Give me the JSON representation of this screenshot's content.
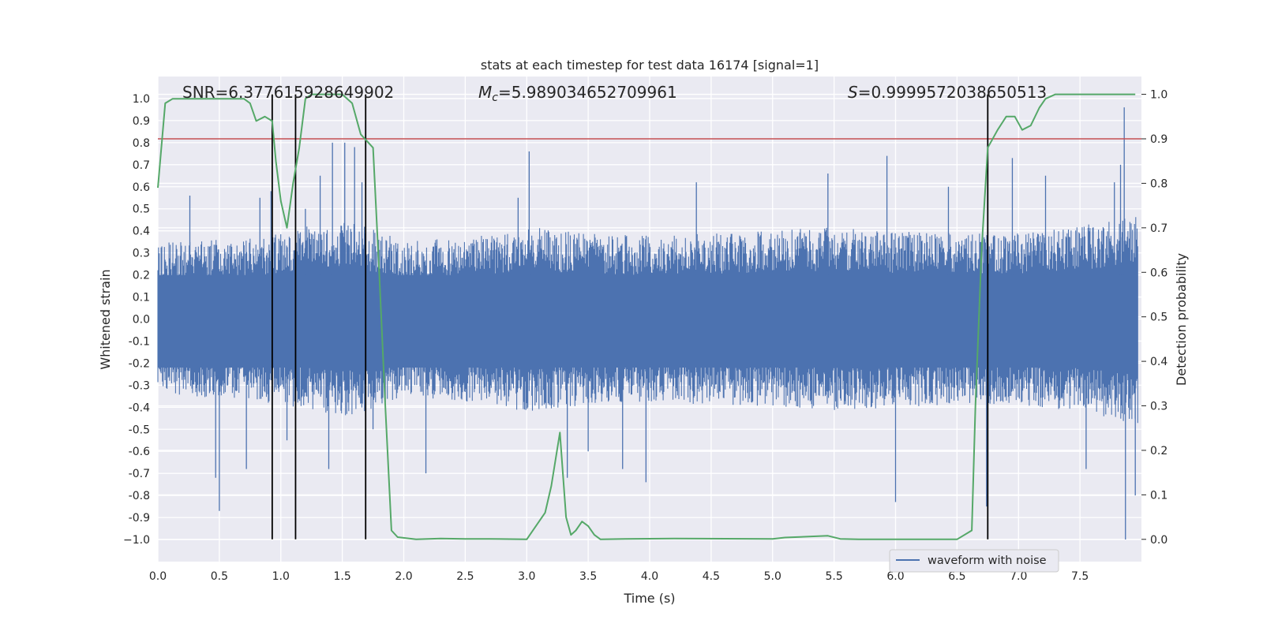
{
  "chart_data": {
    "type": "line",
    "title": "stats at each timestep for test data 16174 [signal=1]",
    "xlabel": "Time (s)",
    "ylabel": "Whitened strain",
    "ylabel_right": "Detection probability",
    "xlim": [
      0.0,
      8.0
    ],
    "ylim": [
      -1.1,
      1.1
    ],
    "ylim_right": [
      -0.05,
      1.04
    ],
    "x_ticks": [
      "0.0",
      "0.5",
      "1.0",
      "1.5",
      "2.0",
      "2.5",
      "3.0",
      "3.5",
      "4.0",
      "4.5",
      "5.0",
      "5.5",
      "6.0",
      "6.5",
      "7.0",
      "7.5"
    ],
    "y_ticks": [
      "1.0",
      "0.9",
      "0.8",
      "0.7",
      "0.6",
      "0.5",
      "0.4",
      "0.3",
      "0.2",
      "0.1",
      "0.0",
      "-0.1",
      "-0.2",
      "-0.3",
      "-0.4",
      "-0.5",
      "-0.6",
      "-0.7",
      "-0.8",
      "-0.9",
      "−1.0"
    ],
    "y_ticks_right": [
      "1.0",
      "0.9",
      "0.8",
      "0.7",
      "0.6",
      "0.5",
      "0.4",
      "0.3",
      "0.2",
      "0.1",
      "0.0"
    ],
    "annotations": {
      "snr": "SNR=6.377615928649902",
      "mc_symbol": "M",
      "mc_sub": "c",
      "mc_value": "=5.989034652709961",
      "s_symbol": "S",
      "s_value": "=0.9999572038650513"
    },
    "legend": {
      "label": "waveform with noise",
      "position": "lower-right"
    },
    "grid": true,
    "series": [
      {
        "name": "waveform with noise",
        "color": "#4c72b0",
        "axis": "left",
        "noise_profile_x": [
          0,
          0.4,
          0.8,
          1.2,
          1.6,
          2.0,
          2.6,
          3.0,
          3.5,
          4.0,
          4.5,
          5.0,
          5.5,
          6.0,
          6.5,
          7.0,
          7.5,
          7.9
        ],
        "noise_profile_amp": [
          0.33,
          0.34,
          0.35,
          0.4,
          0.42,
          0.34,
          0.36,
          0.4,
          0.37,
          0.36,
          0.37,
          0.38,
          0.4,
          0.38,
          0.37,
          0.37,
          0.4,
          0.45
        ],
        "spikes": [
          [
            0.26,
            0.56
          ],
          [
            0.47,
            -0.72
          ],
          [
            0.5,
            -0.87
          ],
          [
            0.72,
            -0.68
          ],
          [
            0.83,
            0.55
          ],
          [
            0.92,
            0.58
          ],
          [
            1.05,
            -0.55
          ],
          [
            1.2,
            0.5
          ],
          [
            1.32,
            0.65
          ],
          [
            1.39,
            -0.68
          ],
          [
            1.42,
            0.8
          ],
          [
            1.52,
            0.8
          ],
          [
            1.6,
            0.78
          ],
          [
            1.66,
            0.62
          ],
          [
            1.75,
            -0.5
          ],
          [
            2.18,
            -0.7
          ],
          [
            2.93,
            0.55
          ],
          [
            3.02,
            0.76
          ],
          [
            3.33,
            -0.72
          ],
          [
            3.5,
            -0.6
          ],
          [
            3.78,
            -0.68
          ],
          [
            3.97,
            -0.74
          ],
          [
            4.38,
            0.62
          ],
          [
            5.45,
            0.66
          ],
          [
            5.93,
            0.74
          ],
          [
            6.0,
            -0.83
          ],
          [
            6.43,
            0.6
          ],
          [
            6.74,
            -0.85
          ],
          [
            6.95,
            0.73
          ],
          [
            7.22,
            0.65
          ],
          [
            7.55,
            -0.68
          ],
          [
            7.78,
            0.62
          ],
          [
            7.83,
            0.7
          ],
          [
            7.86,
            0.96
          ],
          [
            7.87,
            -1.0
          ],
          [
            7.95,
            -0.8
          ]
        ]
      },
      {
        "name": "",
        "color": "#55a868",
        "axis": "right",
        "x": [
          0.0,
          0.06,
          0.12,
          0.2,
          0.5,
          0.7,
          0.75,
          0.8,
          0.87,
          0.93,
          0.96,
          1.0,
          1.05,
          1.1,
          1.15,
          1.2,
          1.25,
          1.35,
          1.5,
          1.58,
          1.65,
          1.75,
          1.8,
          1.85,
          1.9,
          1.95,
          2.1,
          2.3,
          2.5,
          2.7,
          3.0,
          3.15,
          3.2,
          3.27,
          3.32,
          3.36,
          3.4,
          3.45,
          3.5,
          3.55,
          3.6,
          3.8,
          4.2,
          5.0,
          5.1,
          5.45,
          5.55,
          5.7,
          6.5,
          6.62,
          6.65,
          6.7,
          6.75,
          6.83,
          6.9,
          6.97,
          7.03,
          7.1,
          7.17,
          7.22,
          7.3,
          7.95
        ],
        "y": [
          0.79,
          0.98,
          0.99,
          0.99,
          0.99,
          0.99,
          0.98,
          0.94,
          0.95,
          0.94,
          0.85,
          0.76,
          0.7,
          0.8,
          0.88,
          0.99,
          1.0,
          1.0,
          1.0,
          0.98,
          0.91,
          0.88,
          0.6,
          0.3,
          0.02,
          0.005,
          0.0,
          0.002,
          0.001,
          0.001,
          0.0,
          0.06,
          0.12,
          0.24,
          0.05,
          0.01,
          0.02,
          0.04,
          0.03,
          0.01,
          0.0,
          0.001,
          0.002,
          0.001,
          0.004,
          0.008,
          0.001,
          0.0,
          0.0,
          0.02,
          0.3,
          0.65,
          0.88,
          0.92,
          0.95,
          0.95,
          0.92,
          0.93,
          0.97,
          0.99,
          1.0,
          1.0
        ]
      },
      {
        "name": "",
        "color": "#c44e52",
        "axis": "right",
        "type": "hline",
        "y": 0.9
      }
    ],
    "vlines_x": [
      0.93,
      1.12,
      1.69,
      6.75
    ],
    "vline_color": "#000000"
  }
}
